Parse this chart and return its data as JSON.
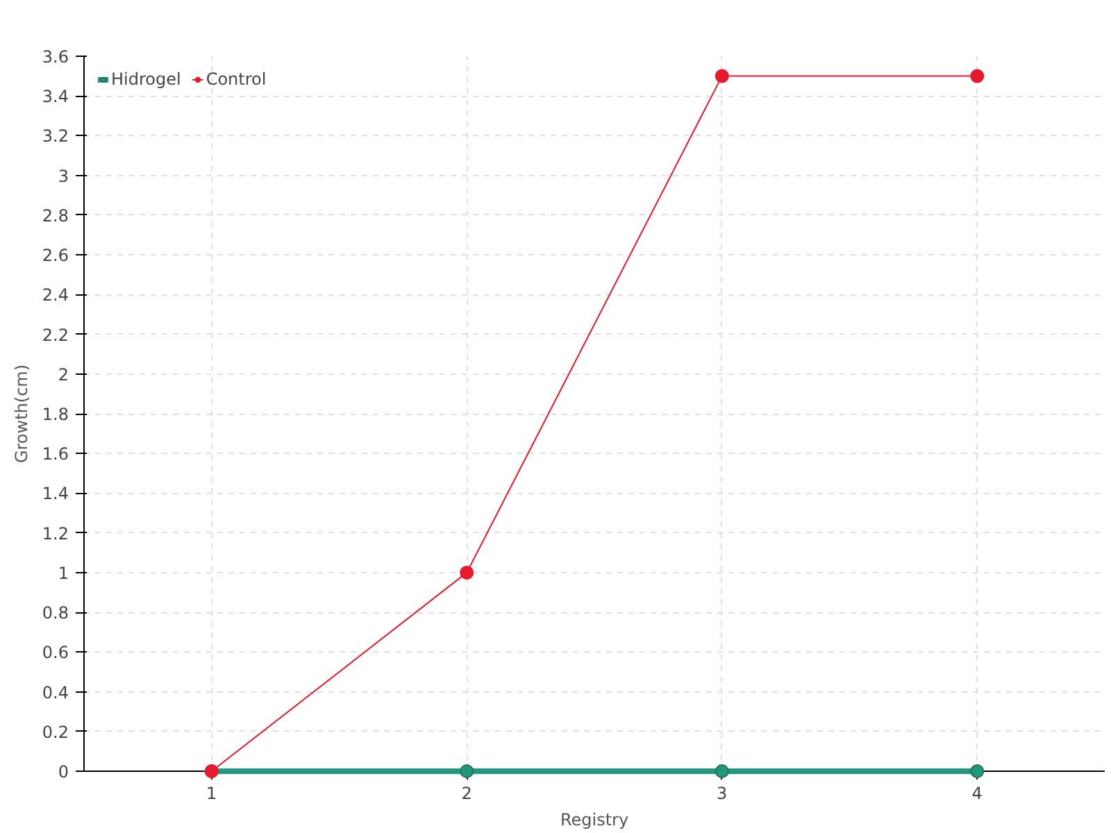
{
  "chart_data": {
    "type": "line",
    "xlabel": "Registry",
    "ylabel": "Growth(cm)",
    "x": [
      1,
      2,
      3,
      4
    ],
    "series": [
      {
        "name": "Hidrogel",
        "color": "#1f9a7e",
        "values": [
          0,
          0,
          0,
          0
        ]
      },
      {
        "name": "Control",
        "color": "#e8192c",
        "values": [
          0,
          1,
          3.5,
          3.5
        ]
      }
    ],
    "xlim": [
      0.5,
      4.5
    ],
    "xticks": [
      1,
      2,
      3,
      4
    ],
    "ylim": [
      0,
      3.6
    ],
    "yticks": [
      0,
      0.2,
      0.4,
      0.6,
      0.8,
      1,
      1.2,
      1.4,
      1.6,
      1.8,
      2,
      2.2,
      2.4,
      2.6,
      2.8,
      3,
      3.2,
      3.4,
      3.6
    ],
    "grid": true,
    "legend": "top left",
    "marker": "circle",
    "line_style": "solid"
  }
}
